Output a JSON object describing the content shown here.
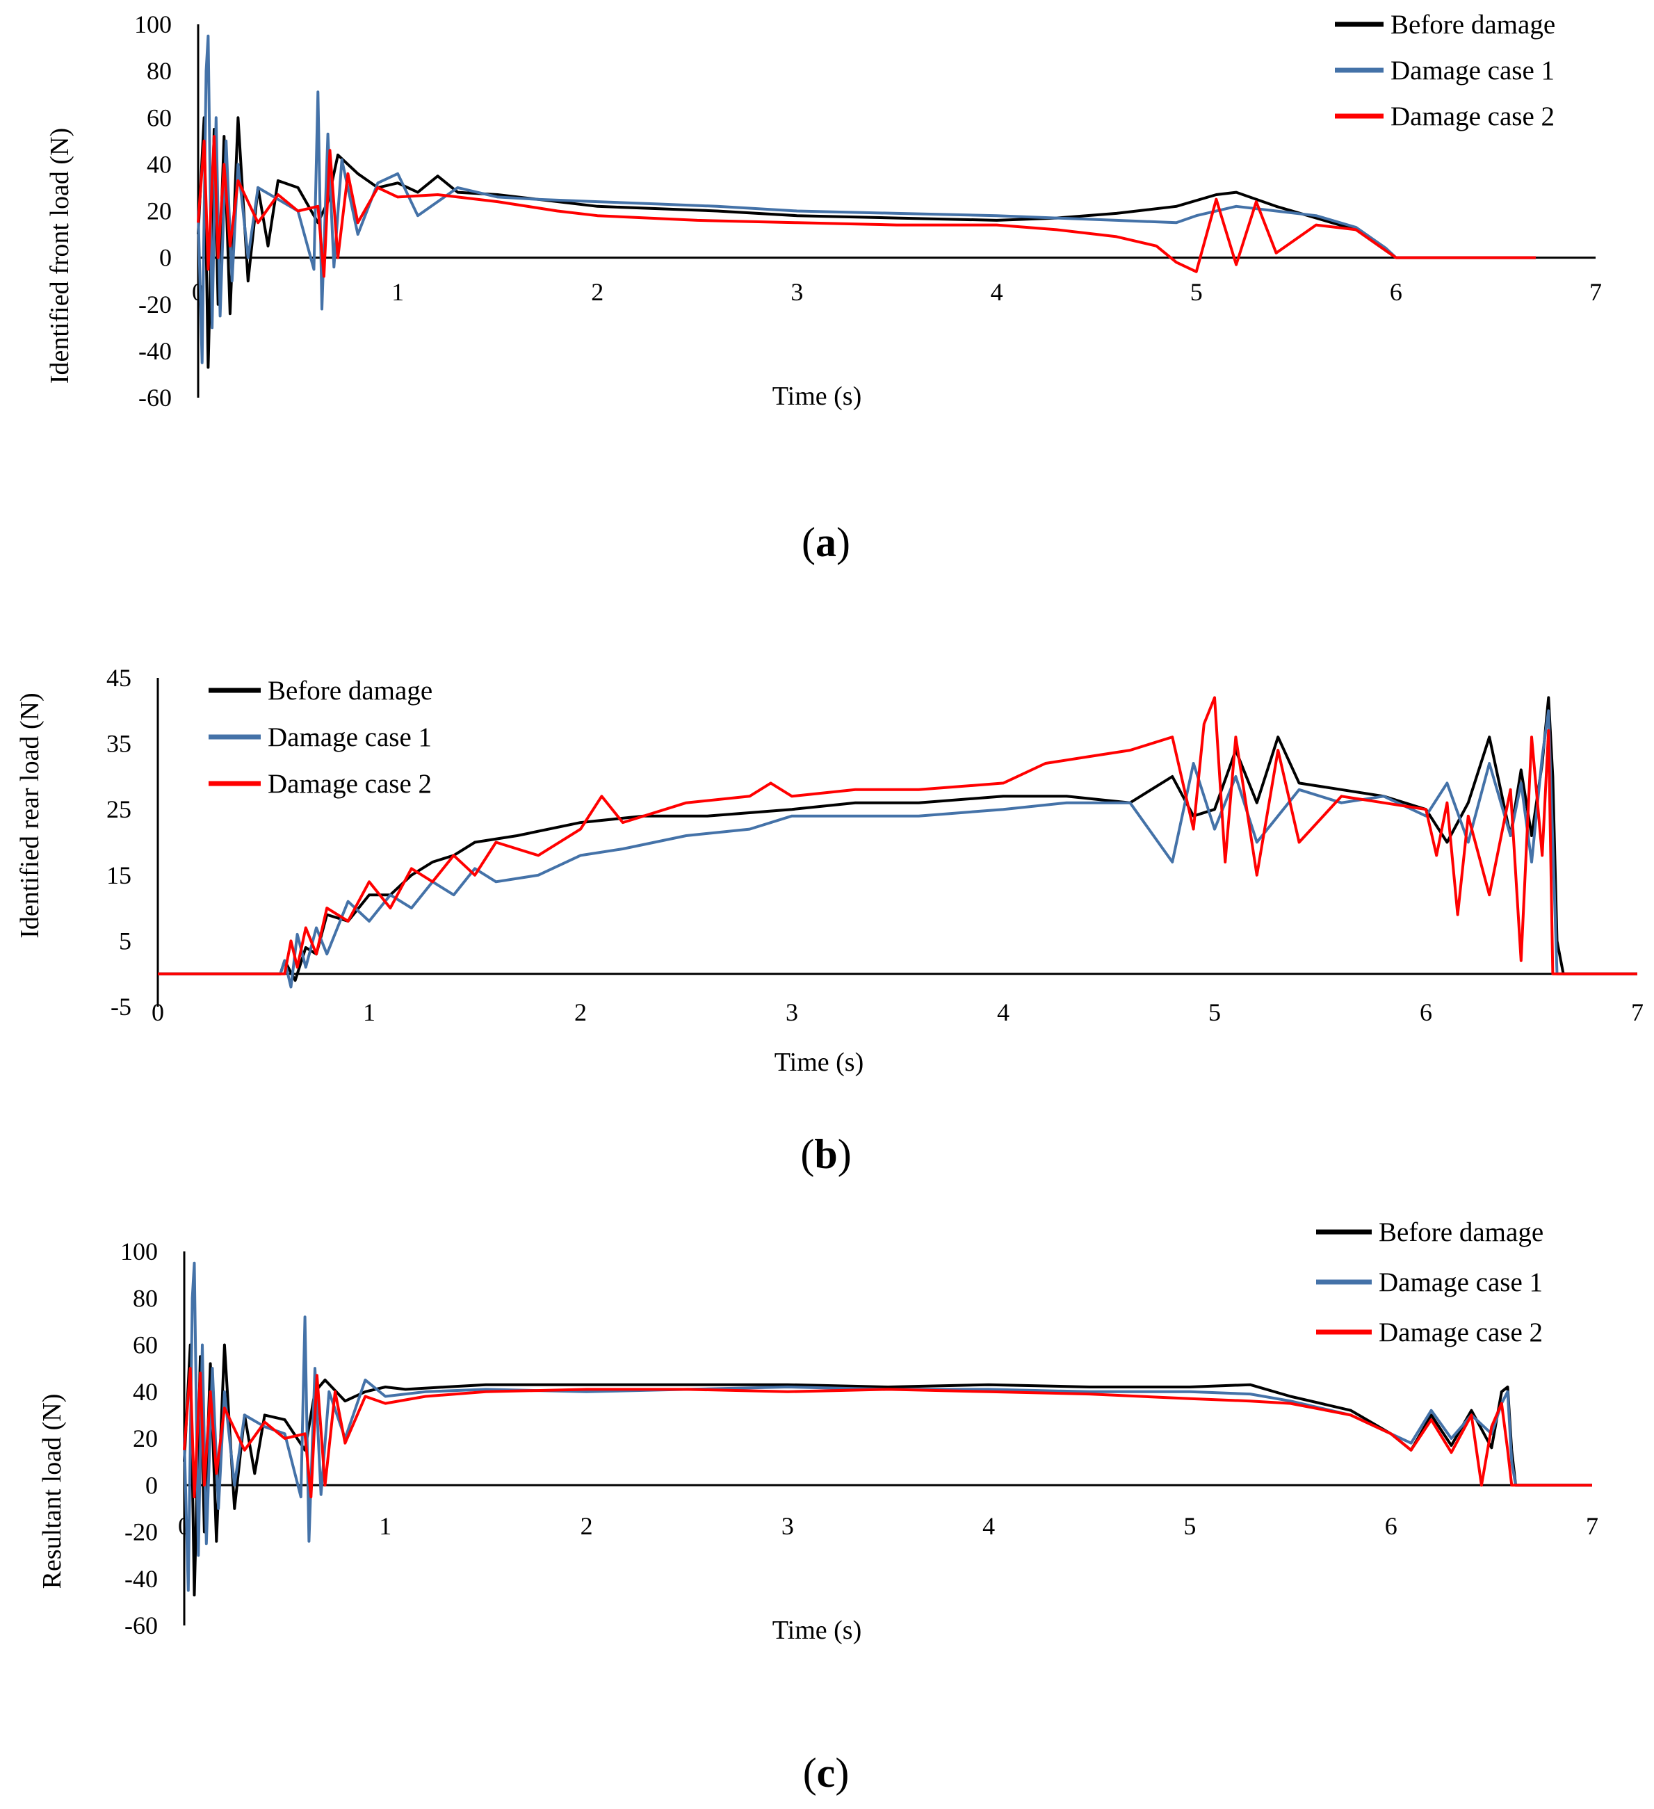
{
  "chart_data": [
    {
      "panel": "(a)",
      "caption_letter": "a",
      "type": "line",
      "xlabel": "Time  (s)",
      "ylabel": "Identified  front  load  (N)",
      "xlim": [
        0,
        7
      ],
      "ylim": [
        -60,
        100
      ],
      "xticks": [
        "0",
        "1",
        "2",
        "3",
        "4",
        "5",
        "6",
        "7"
      ],
      "yticks": [
        "-60",
        "-40",
        "-20",
        "0",
        "20",
        "40",
        "60",
        "80",
        "100"
      ],
      "legend_position": "top-right",
      "series": [
        {
          "name": "Before damage",
          "color": "#000000",
          "x": [
            0.0,
            0.03,
            0.05,
            0.08,
            0.1,
            0.13,
            0.16,
            0.2,
            0.25,
            0.3,
            0.35,
            0.4,
            0.5,
            0.6,
            0.65,
            0.7,
            0.8,
            0.9,
            1.0,
            1.1,
            1.2,
            1.3,
            1.5,
            1.7,
            2.0,
            2.3,
            2.6,
            3.0,
            3.5,
            4.0,
            4.3,
            4.6,
            4.9,
            5.1,
            5.2,
            5.4,
            5.6,
            5.8,
            5.95,
            6.0,
            6.7
          ],
          "y": [
            10,
            60,
            -47,
            55,
            -20,
            52,
            -24,
            60,
            -10,
            30,
            5,
            33,
            30,
            15,
            24,
            44,
            36,
            30,
            32,
            28,
            35,
            28,
            27,
            25,
            22,
            21,
            20,
            18,
            17,
            16,
            17,
            19,
            22,
            27,
            28,
            22,
            17,
            12,
            3,
            0,
            0
          ]
        },
        {
          "name": "Damage case 1",
          "color": "#4472a8",
          "x": [
            0.0,
            0.02,
            0.04,
            0.05,
            0.07,
            0.09,
            0.11,
            0.14,
            0.17,
            0.2,
            0.25,
            0.3,
            0.4,
            0.5,
            0.58,
            0.6,
            0.62,
            0.65,
            0.68,
            0.72,
            0.8,
            0.9,
            1.0,
            1.1,
            1.3,
            1.5,
            1.7,
            2.0,
            2.3,
            2.6,
            3.0,
            3.5,
            4.0,
            4.3,
            4.6,
            4.9,
            5.0,
            5.2,
            5.4,
            5.6,
            5.8,
            5.95,
            6.0,
            6.7
          ],
          "y": [
            20,
            -45,
            80,
            95,
            -30,
            60,
            -25,
            50,
            -10,
            40,
            0,
            30,
            25,
            20,
            -5,
            71,
            -22,
            53,
            -4,
            42,
            10,
            32,
            36,
            18,
            30,
            26,
            25,
            24,
            23,
            22,
            20,
            19,
            18,
            17,
            16,
            15,
            18,
            22,
            20,
            18,
            13,
            4,
            0,
            0
          ]
        },
        {
          "name": "Damage case 2",
          "color": "#ff0000",
          "x": [
            0.0,
            0.03,
            0.05,
            0.08,
            0.1,
            0.13,
            0.16,
            0.2,
            0.3,
            0.4,
            0.5,
            0.6,
            0.63,
            0.66,
            0.7,
            0.75,
            0.8,
            0.9,
            1.0,
            1.2,
            1.5,
            1.8,
            2.0,
            2.5,
            3.0,
            3.5,
            4.0,
            4.3,
            4.6,
            4.8,
            4.9,
            5.0,
            5.1,
            5.2,
            5.3,
            5.4,
            5.6,
            5.8,
            5.95,
            6.0,
            6.7
          ],
          "y": [
            15,
            50,
            -5,
            52,
            0,
            40,
            5,
            33,
            15,
            27,
            20,
            22,
            -8,
            46,
            0,
            36,
            15,
            30,
            26,
            27,
            24,
            20,
            18,
            16,
            15,
            14,
            14,
            12,
            9,
            5,
            -2,
            -6,
            25,
            -3,
            24,
            2,
            14,
            12,
            3,
            0,
            0
          ]
        }
      ]
    },
    {
      "panel": "(b)",
      "caption_letter": "b",
      "type": "line",
      "xlabel": "Time (s)",
      "ylabel": "Identified rear load (N)",
      "xlim": [
        0,
        7
      ],
      "ylim": [
        -5,
        45
      ],
      "xticks": [
        "0",
        "1",
        "2",
        "3",
        "4",
        "5",
        "6",
        "7"
      ],
      "yticks": [
        "-5",
        "5",
        "15",
        "25",
        "35",
        "45"
      ],
      "legend_position": "top-left",
      "series": [
        {
          "name": "Before damage",
          "color": "#000000",
          "x": [
            0.0,
            0.58,
            0.6,
            0.65,
            0.7,
            0.75,
            0.8,
            0.9,
            1.0,
            1.1,
            1.2,
            1.3,
            1.4,
            1.5,
            1.7,
            2.0,
            2.3,
            2.6,
            3.0,
            3.3,
            3.6,
            4.0,
            4.3,
            4.6,
            4.8,
            4.9,
            5.0,
            5.1,
            5.2,
            5.3,
            5.4,
            5.6,
            5.8,
            6.0,
            6.1,
            6.2,
            6.3,
            6.4,
            6.45,
            6.5,
            6.55,
            6.58,
            6.6,
            6.62,
            6.65,
            7.0
          ],
          "y": [
            0,
            0,
            2,
            -1,
            4,
            3,
            9,
            8,
            12,
            12,
            15,
            17,
            18,
            20,
            21,
            23,
            24,
            24,
            25,
            26,
            26,
            27,
            27,
            26,
            30,
            24,
            25,
            34,
            26,
            36,
            29,
            28,
            27,
            25,
            20,
            26,
            36,
            21,
            31,
            21,
            32,
            42,
            30,
            5,
            0,
            0
          ]
        },
        {
          "name": "Damage case 1",
          "color": "#4472a8",
          "x": [
            0.0,
            0.58,
            0.6,
            0.63,
            0.66,
            0.7,
            0.75,
            0.8,
            0.9,
            1.0,
            1.1,
            1.2,
            1.3,
            1.4,
            1.5,
            1.6,
            1.8,
            2.0,
            2.2,
            2.5,
            2.8,
            3.0,
            3.3,
            3.6,
            4.0,
            4.3,
            4.6,
            4.8,
            4.9,
            5.0,
            5.1,
            5.2,
            5.4,
            5.6,
            5.8,
            6.0,
            6.1,
            6.2,
            6.3,
            6.4,
            6.45,
            6.5,
            6.55,
            6.58,
            6.6,
            6.62,
            7.0
          ],
          "y": [
            0,
            0,
            2,
            -2,
            6,
            1,
            7,
            3,
            11,
            8,
            12,
            10,
            14,
            12,
            16,
            14,
            15,
            18,
            19,
            21,
            22,
            24,
            24,
            24,
            25,
            26,
            26,
            17,
            32,
            22,
            30,
            20,
            28,
            26,
            27,
            24,
            29,
            20,
            32,
            21,
            29,
            17,
            33,
            40,
            20,
            0,
            0
          ]
        },
        {
          "name": "Damage case 2",
          "color": "#ff0000",
          "x": [
            0.0,
            0.6,
            0.63,
            0.66,
            0.7,
            0.75,
            0.8,
            0.9,
            1.0,
            1.1,
            1.2,
            1.3,
            1.4,
            1.5,
            1.6,
            1.8,
            2.0,
            2.1,
            2.2,
            2.5,
            2.8,
            2.9,
            3.0,
            3.3,
            3.6,
            4.0,
            4.2,
            4.4,
            4.6,
            4.8,
            4.9,
            4.95,
            5.0,
            5.05,
            5.1,
            5.2,
            5.3,
            5.4,
            5.6,
            5.8,
            6.0,
            6.05,
            6.1,
            6.15,
            6.2,
            6.3,
            6.4,
            6.45,
            6.5,
            6.55,
            6.58,
            6.6,
            6.62,
            7.0
          ],
          "y": [
            0,
            0,
            5,
            1,
            7,
            3,
            10,
            8,
            14,
            10,
            16,
            14,
            18,
            15,
            20,
            18,
            22,
            27,
            23,
            26,
            27,
            29,
            27,
            28,
            28,
            29,
            32,
            33,
            34,
            36,
            22,
            38,
            42,
            17,
            36,
            15,
            34,
            20,
            27,
            26,
            25,
            18,
            26,
            9,
            24,
            12,
            28,
            2,
            36,
            18,
            37,
            0,
            0,
            0
          ]
        }
      ]
    },
    {
      "panel": "(c)",
      "caption_letter": "c",
      "type": "line",
      "xlabel": "Time  (s)",
      "ylabel": "Resultant  load  (N)",
      "xlim": [
        0,
        7
      ],
      "ylim": [
        -60,
        100
      ],
      "xticks": [
        "0",
        "1",
        "2",
        "3",
        "4",
        "5",
        "6",
        "7"
      ],
      "yticks": [
        "-60",
        "-40",
        "-20",
        "0",
        "20",
        "40",
        "60",
        "80",
        "100"
      ],
      "legend_position": "top-right",
      "series": [
        {
          "name": "Before damage",
          "color": "#000000",
          "x": [
            0.0,
            0.03,
            0.05,
            0.08,
            0.1,
            0.13,
            0.16,
            0.2,
            0.25,
            0.3,
            0.35,
            0.4,
            0.5,
            0.6,
            0.65,
            0.7,
            0.8,
            0.9,
            1.0,
            1.1,
            1.3,
            1.5,
            2.0,
            2.5,
            3.0,
            3.5,
            4.0,
            4.5,
            5.0,
            5.3,
            5.5,
            5.8,
            6.0,
            6.1,
            6.2,
            6.3,
            6.4,
            6.5,
            6.55,
            6.58,
            6.6,
            6.62,
            7.0
          ],
          "y": [
            10,
            60,
            -47,
            55,
            -20,
            52,
            -24,
            60,
            -10,
            30,
            5,
            30,
            28,
            15,
            40,
            45,
            36,
            40,
            42,
            41,
            42,
            43,
            43,
            43,
            43,
            42,
            43,
            42,
            42,
            43,
            38,
            32,
            22,
            15,
            30,
            17,
            32,
            16,
            40,
            42,
            15,
            0,
            0
          ]
        },
        {
          "name": "Damage case 1",
          "color": "#4472a8",
          "x": [
            0.0,
            0.02,
            0.04,
            0.05,
            0.07,
            0.09,
            0.11,
            0.14,
            0.17,
            0.2,
            0.25,
            0.3,
            0.4,
            0.5,
            0.58,
            0.6,
            0.62,
            0.65,
            0.68,
            0.72,
            0.8,
            0.9,
            1.0,
            1.2,
            1.5,
            2.0,
            2.5,
            3.0,
            3.5,
            4.0,
            4.5,
            5.0,
            5.3,
            5.5,
            5.8,
            6.0,
            6.1,
            6.2,
            6.3,
            6.4,
            6.5,
            6.55,
            6.58,
            6.6,
            6.62,
            7.0
          ],
          "y": [
            20,
            -45,
            80,
            95,
            -30,
            60,
            -25,
            50,
            -10,
            40,
            0,
            30,
            25,
            22,
            -5,
            72,
            -24,
            50,
            -4,
            40,
            20,
            45,
            38,
            40,
            41,
            40,
            41,
            42,
            41,
            41,
            40,
            40,
            39,
            36,
            30,
            22,
            18,
            32,
            20,
            30,
            22,
            35,
            40,
            10,
            0,
            0
          ]
        },
        {
          "name": "Damage case 2",
          "color": "#ff0000",
          "x": [
            0.0,
            0.03,
            0.05,
            0.08,
            0.1,
            0.13,
            0.16,
            0.2,
            0.3,
            0.4,
            0.5,
            0.6,
            0.63,
            0.66,
            0.7,
            0.75,
            0.8,
            0.9,
            1.0,
            1.2,
            1.5,
            2.0,
            2.5,
            3.0,
            3.5,
            4.0,
            4.5,
            5.0,
            5.3,
            5.5,
            5.8,
            6.0,
            6.1,
            6.2,
            6.3,
            6.4,
            6.45,
            6.5,
            6.55,
            6.58,
            6.6,
            6.62,
            7.0
          ],
          "y": [
            15,
            50,
            -5,
            48,
            0,
            40,
            5,
            33,
            15,
            27,
            20,
            22,
            -5,
            47,
            0,
            40,
            18,
            38,
            35,
            38,
            40,
            41,
            41,
            40,
            41,
            40,
            39,
            37,
            36,
            35,
            30,
            22,
            15,
            28,
            14,
            30,
            0,
            25,
            35,
            15,
            0,
            0,
            0
          ]
        }
      ]
    }
  ]
}
